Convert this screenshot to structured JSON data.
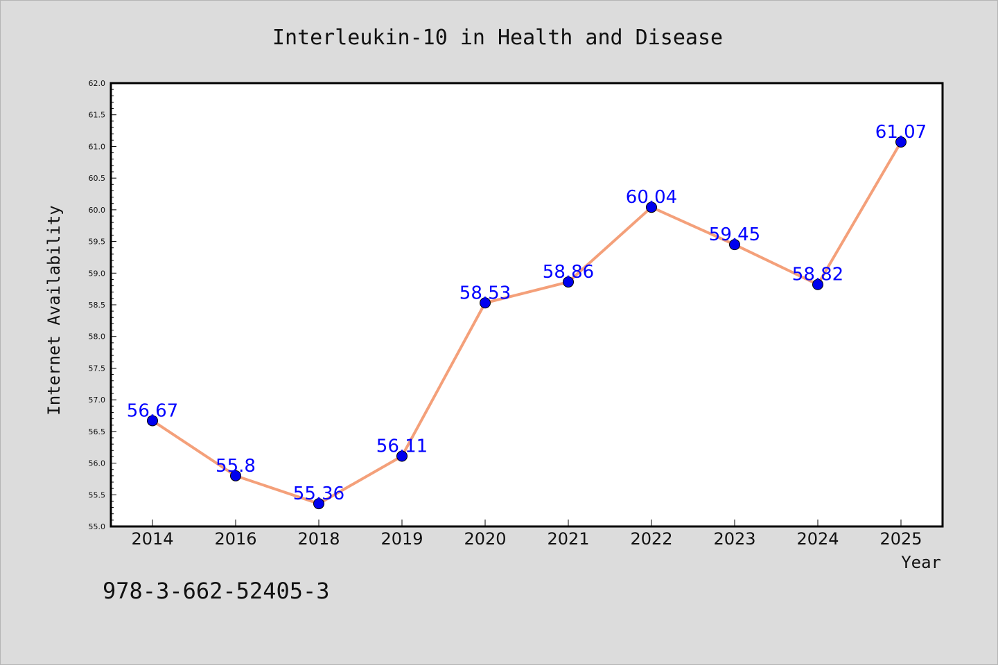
{
  "chart_data": {
    "type": "line",
    "title": "Interleukin-10 in Health and Disease",
    "xlabel": "Year",
    "ylabel": "Internet Availability",
    "categories": [
      "2014",
      "2016",
      "2018",
      "2019",
      "2020",
      "2021",
      "2022",
      "2023",
      "2024",
      "2025"
    ],
    "series": [
      {
        "values": [
          56.67,
          55.8,
          55.36,
          56.11,
          58.53,
          58.86,
          60.04,
          59.45,
          58.82,
          61.07
        ],
        "data_labels": [
          "56.67",
          "55.8",
          "55.36",
          "56.11",
          "58.53",
          "58.86",
          "60.04",
          "59.45",
          "58.82",
          "61.07"
        ]
      }
    ],
    "ylim": [
      55.0,
      62.0
    ],
    "yticks": [
      "55.0",
      "55.5",
      "56.0",
      "56.5",
      "57.0",
      "57.5",
      "58.0",
      "58.5",
      "59.0",
      "59.5",
      "60.0",
      "60.5",
      "61.0",
      "61.5",
      "62.0"
    ],
    "grid": false,
    "colors": {
      "line": "#f4a07a",
      "marker": "#0000ee",
      "label": "#0000ff"
    }
  },
  "footer": {
    "isbn": "978-3-662-52405-3"
  }
}
